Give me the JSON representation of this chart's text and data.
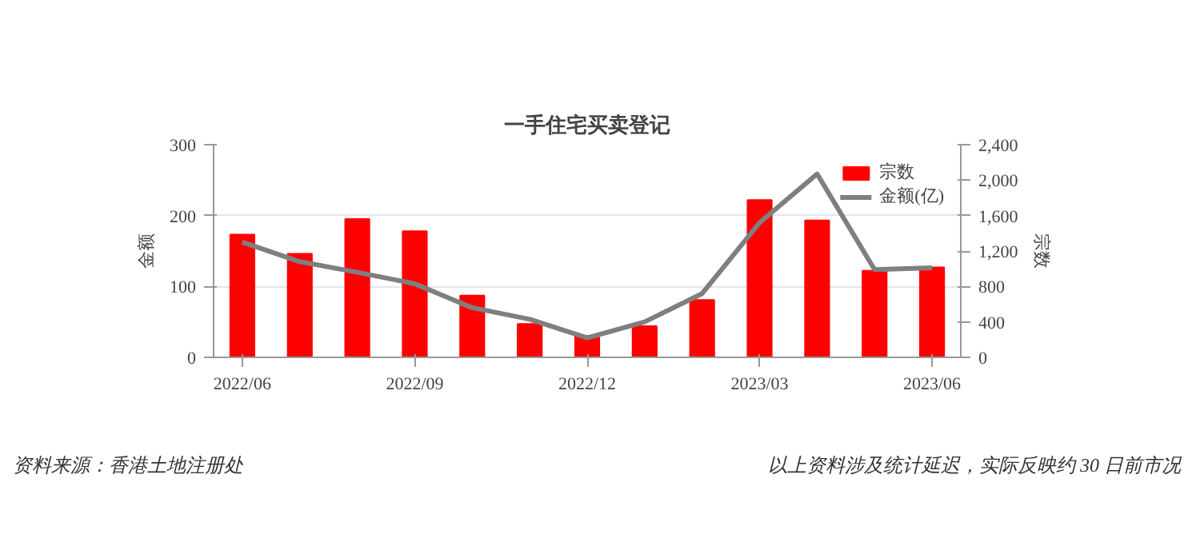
{
  "chart_data": {
    "type": "bar",
    "title": "一手住宅买卖登记",
    "categories": [
      "2022/06",
      null,
      null,
      "2022/09",
      null,
      null,
      "2022/12",
      null,
      null,
      "2023/03",
      null,
      null,
      "2023/06"
    ],
    "series": [
      {
        "name": "宗数",
        "color": "#ff0000",
        "values": [
          173,
          146,
          195,
          178,
          87,
          47,
          30,
          44,
          81,
          222,
          193,
          122,
          127
        ]
      },
      {
        "name": "金额(亿)",
        "type": "line",
        "axis": "y2",
        "color": "#7f7f7f",
        "values": [
          1300,
          1080,
          960,
          830,
          560,
          430,
          220,
          400,
          720,
          1520,
          2070,
          990,
          1010
        ]
      }
    ],
    "ylabel": "金额",
    "y2label": "宗数",
    "ylim": [
      0,
      300
    ],
    "yticks": [
      0,
      100,
      200,
      300
    ],
    "y2lim": [
      0,
      2400
    ],
    "y2ticks": [
      0,
      {
        "value": 400,
        "label": "400"
      },
      {
        "value": 800,
        "label": "800"
      },
      {
        "value": 1200,
        "label": "1,200"
      },
      {
        "value": 1600,
        "label": "1,600"
      },
      {
        "value": 2000,
        "label": "2,000"
      },
      {
        "value": 2400,
        "label": "2,400"
      }
    ],
    "grid": "y",
    "legend": "top right",
    "annotations": [
      "资料来源：香港土地注册处",
      "以上资料涉及统计延迟，实际反映约 30 日前市况"
    ]
  }
}
